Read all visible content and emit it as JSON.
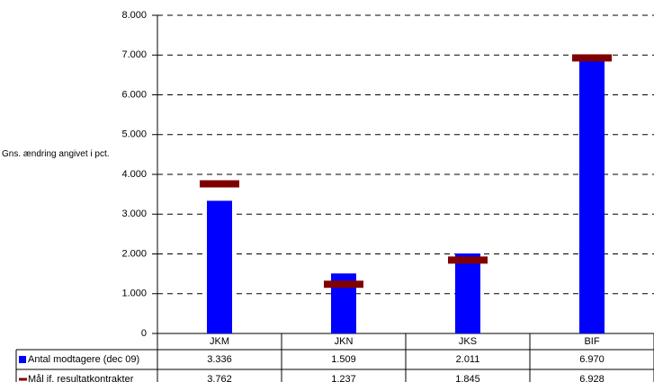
{
  "chart_data": {
    "type": "bar",
    "y_label": "Gns. ændring angivet i pct.",
    "categories": [
      "JKM",
      "JKN",
      "JKS",
      "BIF"
    ],
    "series": [
      {
        "name": "Antal modtagere (dec 09)",
        "color": "#0000ff",
        "values": [
          3336,
          1509,
          2011,
          6970
        ],
        "value_labels": [
          "3.336",
          "1.509",
          "2.011",
          "6.970"
        ]
      },
      {
        "name": "Mål if. resultatkontrakter",
        "color": "#800000",
        "values": [
          3762,
          1237,
          1845,
          6928
        ],
        "value_labels": [
          "3.762",
          "1.237",
          "1.845",
          "6.928"
        ]
      }
    ],
    "ylim": [
      0,
      8000
    ],
    "yticks": [
      0,
      {
        "value": 1000,
        "label": "1.000"
      },
      {
        "value": 2000,
        "label": "2.000"
      },
      {
        "value": 3000,
        "label": "3.000"
      },
      {
        "value": 4000,
        "label": "4.000"
      },
      {
        "value": 5000,
        "label": "5.000"
      },
      {
        "value": 6000,
        "label": "6.000"
      },
      {
        "value": 7000,
        "label": "7.000"
      },
      {
        "value": 8000,
        "label": "8.000"
      }
    ],
    "grid": true
  }
}
